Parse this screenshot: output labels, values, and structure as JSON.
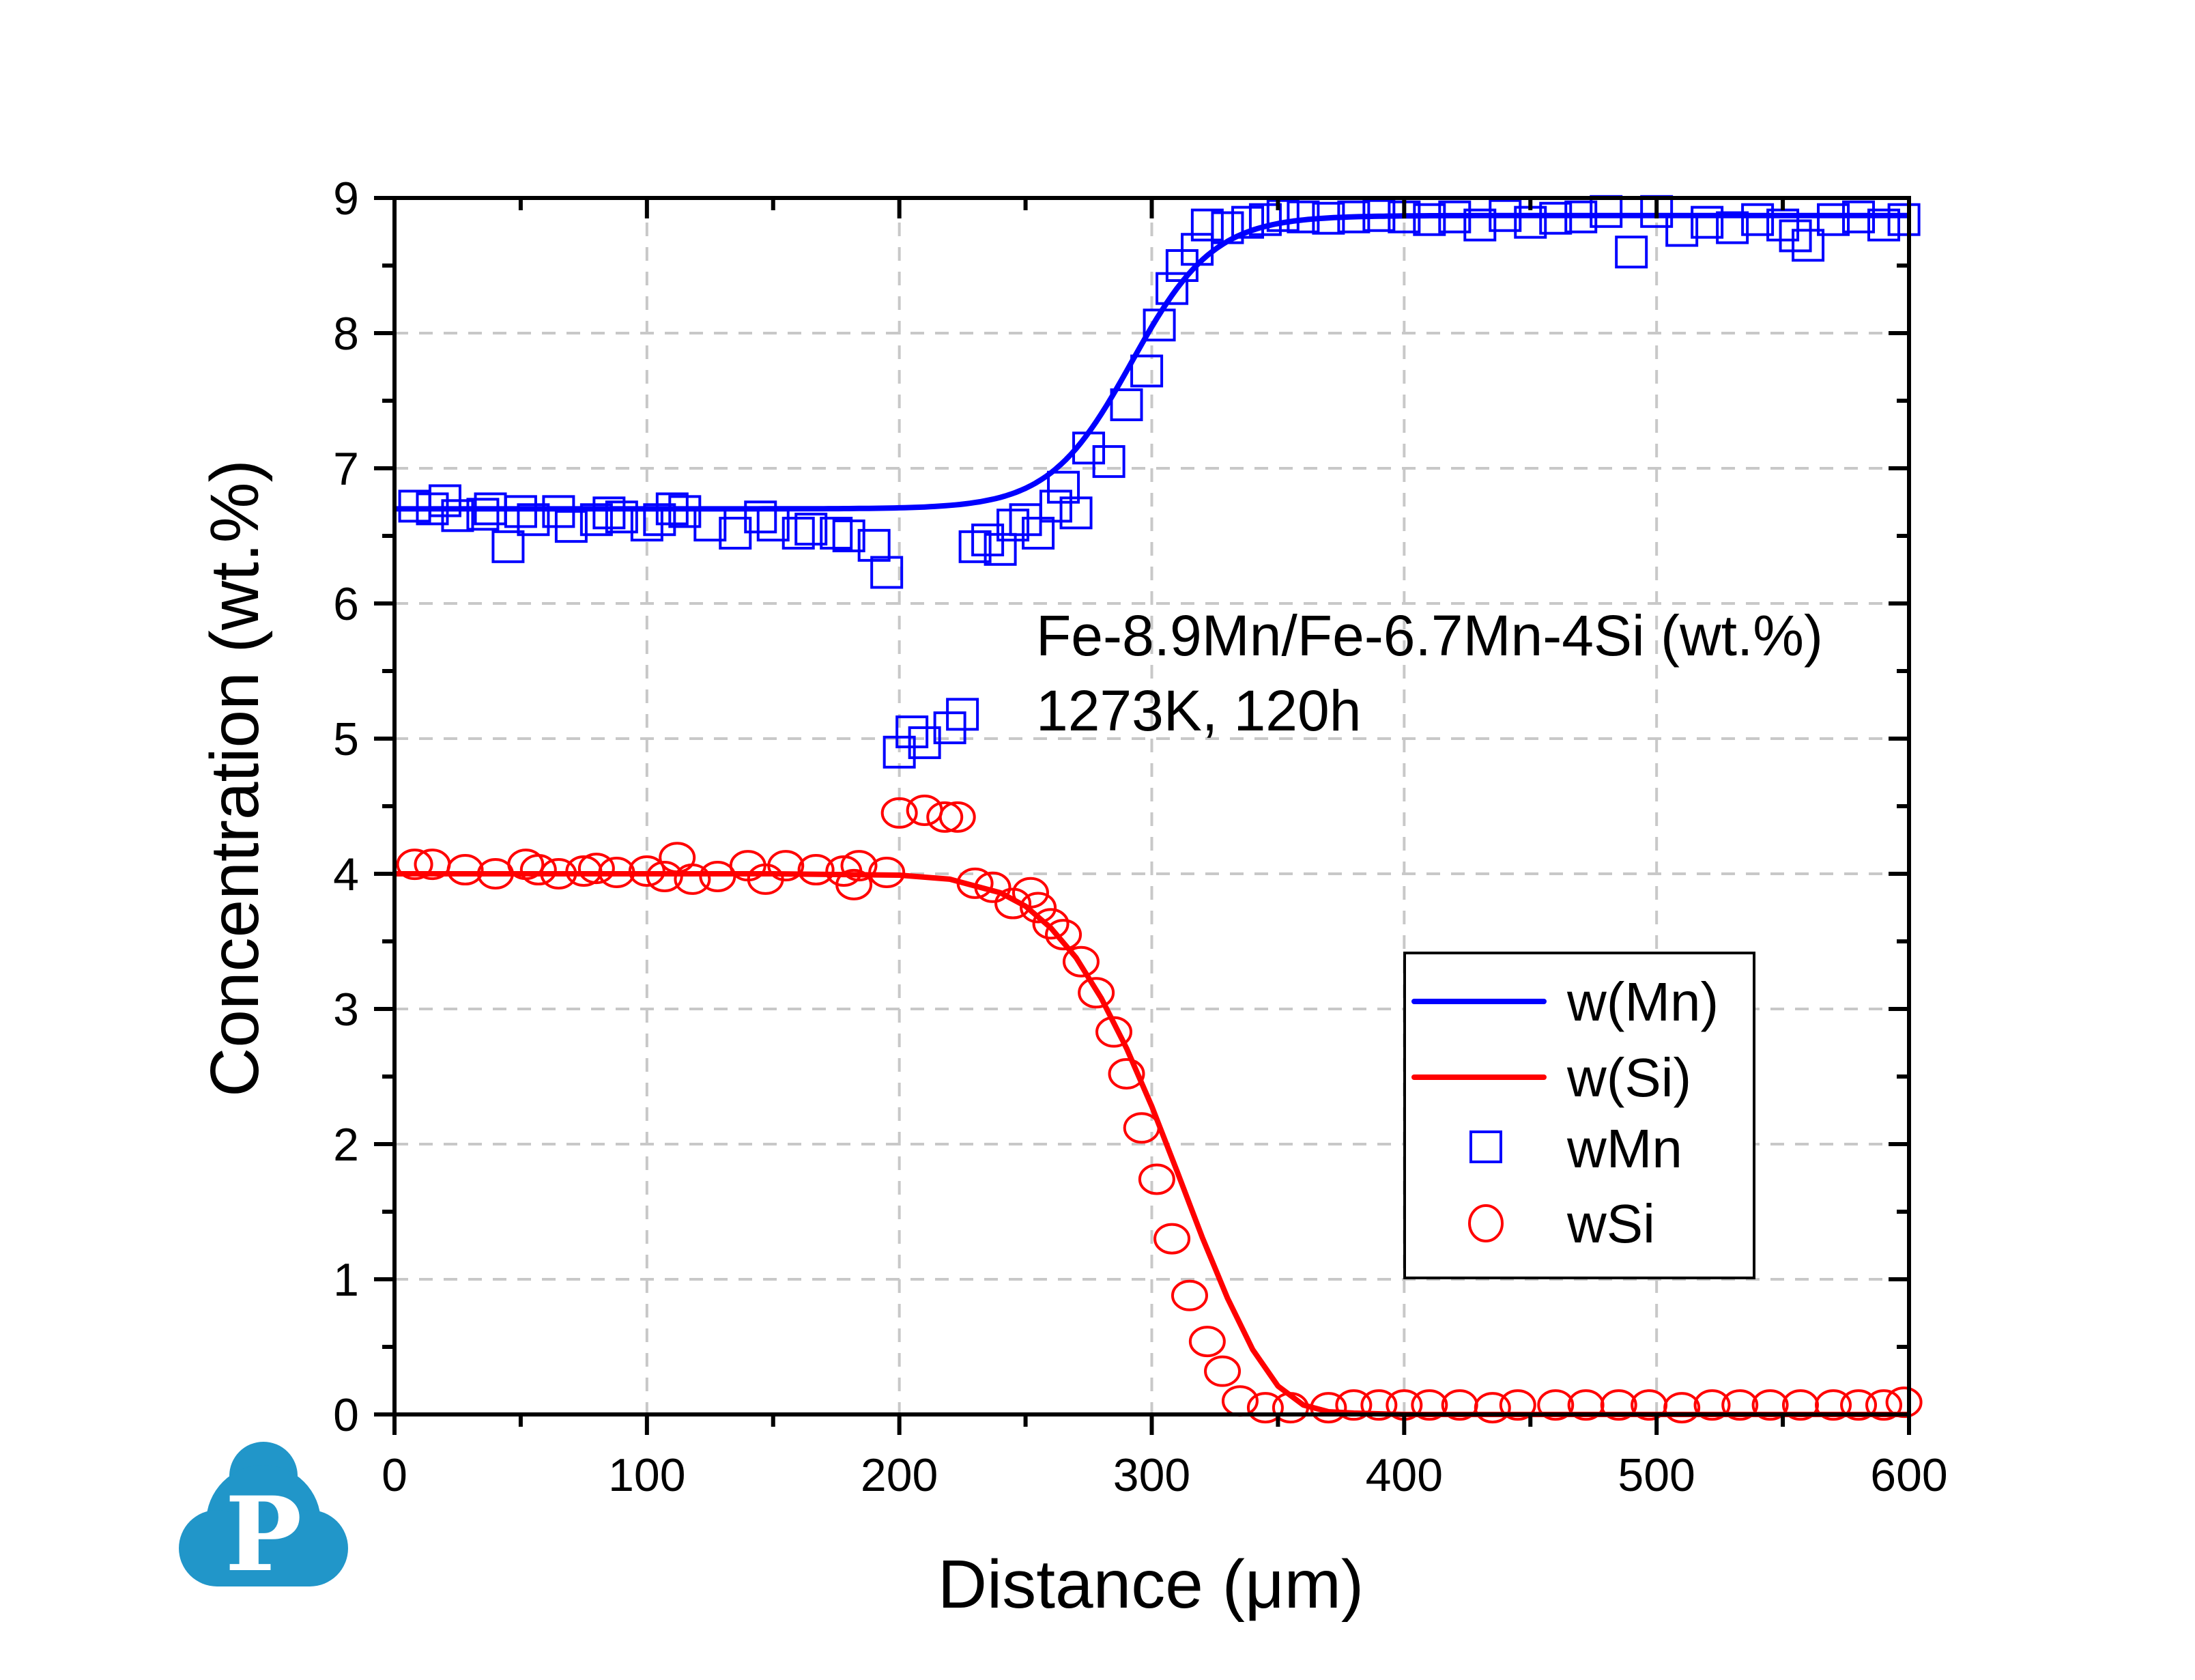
{
  "chart_data": {
    "type": "scatter",
    "title": "",
    "xlabel": "Distance (μm)",
    "ylabel": "Concentration (wt.%)",
    "xlim": [
      0,
      600
    ],
    "ylim": [
      0,
      9
    ],
    "xticks": [
      0,
      100,
      200,
      300,
      400,
      500,
      600
    ],
    "yticks": [
      0,
      1,
      2,
      3,
      4,
      5,
      6,
      7,
      8,
      9
    ],
    "grid": true,
    "legend_position": "lower-right",
    "annotations": [
      "Fe-8.9Mn/Fe-6.7Mn-4Si (wt.%)",
      "1273K, 120h"
    ],
    "series": [
      {
        "name": "w(Mn)",
        "kind": "line",
        "color": "#0000ff",
        "model": {
          "left": 6.7,
          "right": 8.87,
          "center": 292,
          "width": 26
        },
        "x": [
          0,
          50,
          100,
          150,
          200,
          220,
          240,
          250,
          260,
          270,
          280,
          290,
          300,
          310,
          320,
          330,
          340,
          350,
          360,
          380,
          400,
          450,
          500,
          550,
          600
        ],
        "values": [
          6.7,
          6.7,
          6.7,
          6.7,
          6.7,
          6.7,
          6.72,
          6.76,
          6.84,
          6.99,
          7.22,
          7.57,
          7.97,
          8.33,
          8.59,
          8.74,
          8.81,
          8.85,
          8.86,
          8.87,
          8.87,
          8.87,
          8.87,
          8.87,
          8.87
        ]
      },
      {
        "name": "w(Si)",
        "kind": "line",
        "color": "#ff0000",
        "x": [
          0,
          50,
          100,
          150,
          200,
          220,
          240,
          250,
          260,
          270,
          280,
          290,
          300,
          310,
          320,
          330,
          340,
          350,
          360,
          370,
          380,
          400,
          450,
          500,
          550,
          600
        ],
        "values": [
          4.0,
          4.0,
          4.0,
          4.0,
          3.99,
          3.96,
          3.86,
          3.76,
          3.6,
          3.38,
          3.08,
          2.71,
          2.28,
          1.8,
          1.31,
          0.86,
          0.48,
          0.21,
          0.07,
          0.02,
          0.01,
          0.0,
          0.0,
          0.0,
          0.0,
          0.0
        ]
      },
      {
        "name": "wMn",
        "kind": "scatter",
        "marker": "square",
        "color": "#0000ff",
        "x": [
          8,
          15,
          20,
          25,
          35,
          38,
          45,
          50,
          55,
          65,
          70,
          80,
          85,
          90,
          100,
          105,
          110,
          115,
          125,
          135,
          145,
          150,
          160,
          165,
          175,
          180,
          190,
          195,
          200,
          205,
          210,
          220,
          225,
          230,
          235,
          240,
          245,
          250,
          255,
          262,
          265,
          270,
          275,
          283,
          290,
          298,
          303,
          308,
          312,
          318,
          322,
          330,
          338,
          345,
          352,
          360,
          370,
          380,
          390,
          400,
          410,
          420,
          430,
          440,
          450,
          460,
          470,
          480,
          490,
          500,
          510,
          520,
          530,
          540,
          550,
          555,
          560,
          570,
          580,
          590,
          598
        ],
        "values": [
          6.72,
          6.7,
          6.76,
          6.65,
          6.66,
          6.7,
          6.42,
          6.68,
          6.62,
          6.68,
          6.57,
          6.62,
          6.67,
          6.64,
          6.58,
          6.62,
          6.7,
          6.68,
          6.58,
          6.52,
          6.64,
          6.58,
          6.52,
          6.55,
          6.52,
          6.5,
          6.43,
          6.23,
          4.9,
          5.05,
          4.97,
          5.08,
          5.18,
          6.42,
          6.47,
          6.4,
          6.58,
          6.62,
          6.52,
          6.72,
          6.86,
          6.67,
          7.15,
          7.05,
          7.47,
          7.72,
          8.06,
          8.33,
          8.5,
          8.62,
          8.8,
          8.78,
          8.82,
          8.84,
          8.87,
          8.86,
          8.85,
          8.86,
          8.87,
          8.86,
          8.84,
          8.86,
          8.8,
          8.87,
          8.82,
          8.85,
          8.86,
          8.9,
          8.6,
          8.9,
          8.76,
          8.82,
          8.78,
          8.84,
          8.8,
          8.72,
          8.65,
          8.84,
          8.86,
          8.8,
          8.84
        ]
      },
      {
        "name": "wSi",
        "kind": "scatter",
        "marker": "circle",
        "color": "#ff0000",
        "x": [
          8,
          15,
          28,
          40,
          52,
          57,
          65,
          75,
          80,
          88,
          100,
          107,
          112,
          118,
          128,
          140,
          147,
          155,
          167,
          178,
          182,
          184,
          195,
          200,
          210,
          218,
          223,
          230,
          237,
          245,
          252,
          255,
          260,
          265,
          272,
          278,
          285,
          290,
          296,
          302,
          308,
          315,
          322,
          328,
          335,
          345,
          355,
          370,
          380,
          390,
          400,
          410,
          422,
          435,
          445,
          460,
          472,
          485,
          497,
          510,
          522,
          533,
          545,
          557,
          570,
          580,
          590,
          598
        ],
        "values": [
          4.07,
          4.07,
          4.03,
          4.0,
          4.07,
          4.03,
          4.0,
          4.02,
          4.04,
          4.01,
          4.02,
          3.98,
          4.12,
          3.96,
          3.98,
          4.06,
          3.96,
          4.06,
          4.03,
          4.02,
          3.92,
          4.06,
          4.01,
          4.45,
          4.47,
          4.42,
          4.42,
          3.93,
          3.9,
          3.78,
          3.86,
          3.75,
          3.63,
          3.55,
          3.35,
          3.12,
          2.83,
          2.52,
          2.12,
          1.74,
          1.3,
          0.88,
          0.54,
          0.32,
          0.1,
          0.05,
          0.05,
          0.05,
          0.07,
          0.07,
          0.07,
          0.07,
          0.07,
          0.05,
          0.07,
          0.07,
          0.07,
          0.07,
          0.07,
          0.05,
          0.07,
          0.07,
          0.07,
          0.07,
          0.07,
          0.07,
          0.07,
          0.09
        ]
      }
    ]
  },
  "legend": {
    "items": [
      {
        "label": "w(Mn)",
        "kind": "line",
        "color": "#0000ff"
      },
      {
        "label": "w(Si)",
        "kind": "line",
        "color": "#ff0000"
      },
      {
        "label": "wMn",
        "kind": "square",
        "color": "#0000ff"
      },
      {
        "label": "wSi",
        "kind": "circle",
        "color": "#ff0000"
      }
    ]
  },
  "logo": {
    "letter": "P",
    "color": "#2196c9"
  }
}
